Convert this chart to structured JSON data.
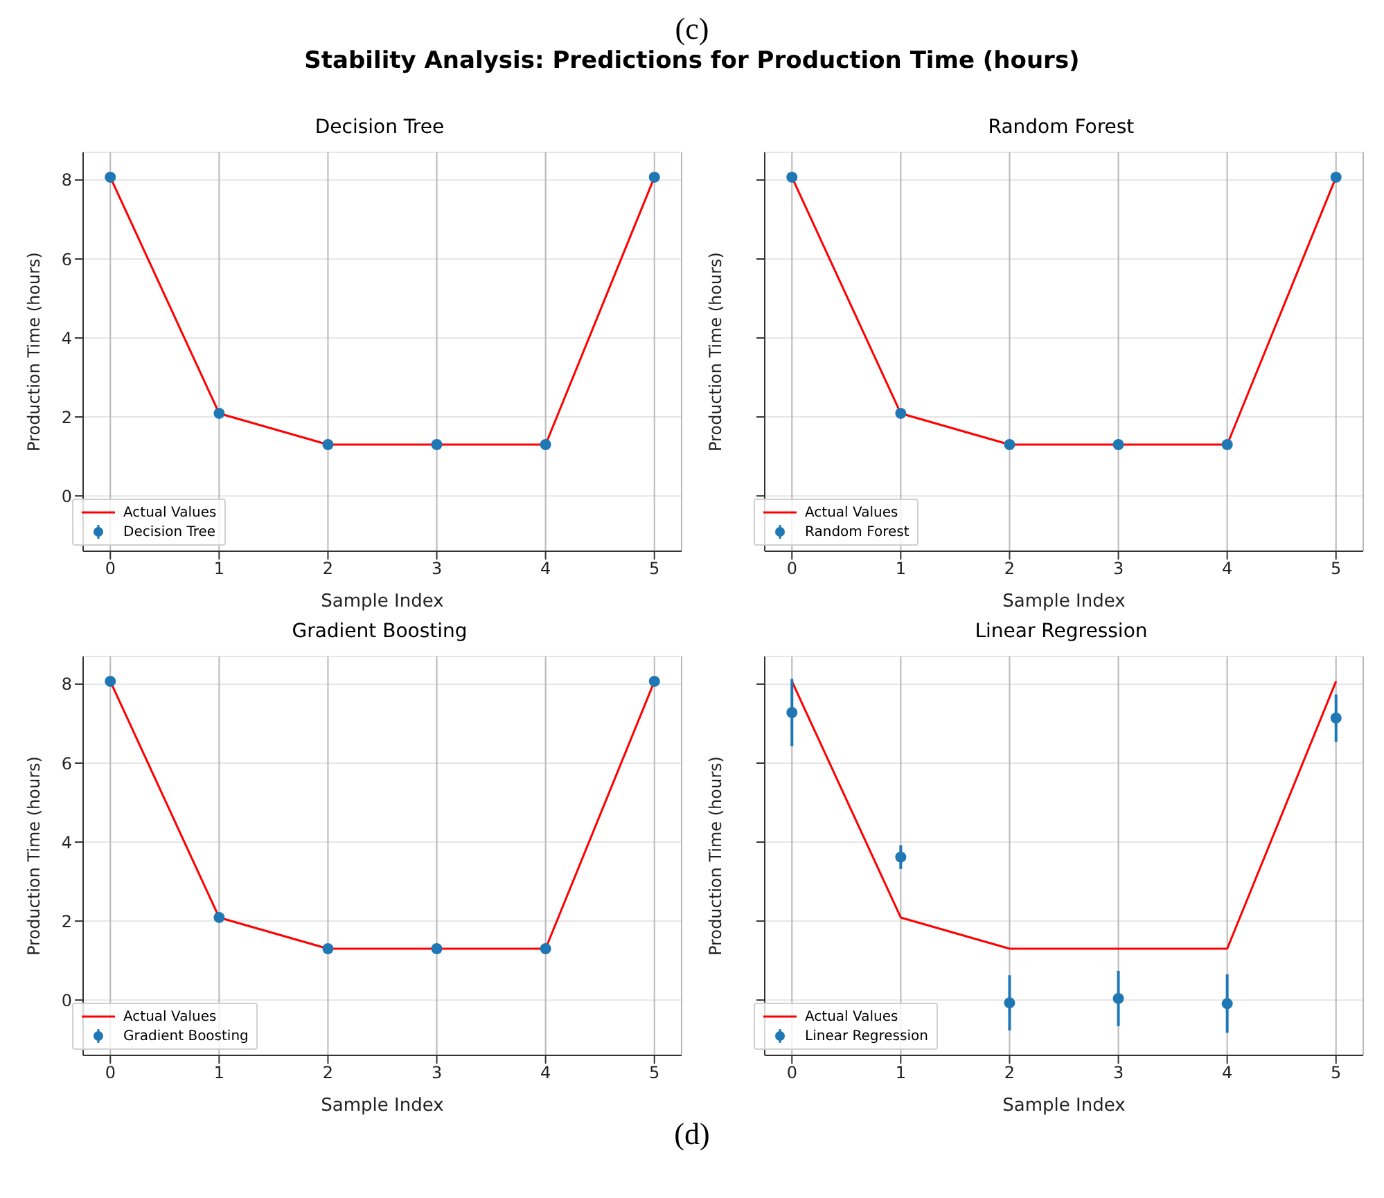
{
  "chart_data": [
    {
      "type": "line",
      "title": "Decision Tree",
      "xlabel": "Sample Index",
      "ylabel": "Production Time (hours)",
      "annotations": [
        "(c)",
        "Stability Analysis: Predictions for Production Time (hours)"
      ],
      "x": [
        0,
        1,
        2,
        3,
        4,
        5
      ],
      "xlim": [
        -0.25,
        5.25
      ],
      "xticks": [
        0,
        1,
        2,
        3,
        4,
        5
      ],
      "ylim": [
        -1.4,
        8.7
      ],
      "yticks": [
        0,
        2,
        4,
        6,
        8
      ],
      "grid": true,
      "legend": "bottom left",
      "series": [
        {
          "name": "Actual Values",
          "type": "line",
          "color": "#ff0000",
          "values": [
            8.07,
            2.09,
            1.3,
            1.3,
            1.3,
            8.07
          ]
        },
        {
          "name": "Decision Tree",
          "type": "scatter",
          "marker": "circle",
          "color": "#1f77b4",
          "values": [
            8.07,
            2.09,
            1.3,
            1.3,
            1.3,
            8.07
          ]
        }
      ]
    },
    {
      "type": "line",
      "title": "Random Forest",
      "xlabel": "Sample Index",
      "ylabel": "Production Time (hours)",
      "x": [
        0,
        1,
        2,
        3,
        4,
        5
      ],
      "xlim": [
        -0.25,
        5.25
      ],
      "xticks": [
        0,
        1,
        2,
        3,
        4,
        5
      ],
      "ylim": [
        -1.4,
        8.7
      ],
      "yticks": [
        0,
        2,
        4,
        6,
        8
      ],
      "tick_labels": "x",
      "grid": true,
      "legend": "bottom left",
      "series": [
        {
          "name": "Actual Values",
          "type": "line",
          "color": "#ff0000",
          "values": [
            8.07,
            2.09,
            1.3,
            1.3,
            1.3,
            8.07
          ]
        },
        {
          "name": "Random Forest",
          "type": "scatter",
          "marker": "circle",
          "color": "#1f77b4",
          "values": [
            8.07,
            2.09,
            1.3,
            1.3,
            1.3,
            8.07
          ]
        }
      ]
    },
    {
      "type": "line",
      "title": "Gradient Boosting",
      "xlabel": "Sample Index",
      "ylabel": "Production Time (hours)",
      "x": [
        0,
        1,
        2,
        3,
        4,
        5
      ],
      "xlim": [
        -0.25,
        5.25
      ],
      "xticks": [
        0,
        1,
        2,
        3,
        4,
        5
      ],
      "ylim": [
        -1.4,
        8.7
      ],
      "yticks": [
        0,
        2,
        4,
        6,
        8
      ],
      "grid": true,
      "legend": "bottom left",
      "series": [
        {
          "name": "Actual Values",
          "type": "line",
          "color": "#ff0000",
          "values": [
            8.07,
            2.09,
            1.3,
            1.3,
            1.3,
            8.07
          ]
        },
        {
          "name": "Gradient Boosting",
          "type": "scatter",
          "marker": "circle",
          "color": "#1f77b4",
          "values": [
            8.07,
            2.09,
            1.3,
            1.3,
            1.3,
            8.07
          ]
        }
      ]
    },
    {
      "type": "line",
      "title": "Linear Regression",
      "xlabel": "Sample Index",
      "ylabel": "Production Time (hours)",
      "annotations": [
        "(d)"
      ],
      "x": [
        0,
        1,
        2,
        3,
        4,
        5
      ],
      "xlim": [
        -0.25,
        5.25
      ],
      "xticks": [
        0,
        1,
        2,
        3,
        4,
        5
      ],
      "ylim": [
        -1.4,
        8.7
      ],
      "yticks": [
        0,
        2,
        4,
        6,
        8
      ],
      "tick_labels": "x",
      "grid": true,
      "legend": "bottom left",
      "series": [
        {
          "name": "Actual Values",
          "type": "line",
          "color": "#ff0000",
          "values": [
            8.07,
            2.09,
            1.3,
            1.3,
            1.3,
            8.07
          ]
        },
        {
          "name": "Linear Regression",
          "type": "scatter",
          "marker": "circle",
          "color": "#1f77b4",
          "values": [
            7.28,
            3.62,
            -0.07,
            0.04,
            -0.09,
            7.14
          ],
          "errors": [
            0.85,
            0.3,
            0.7,
            0.7,
            0.74,
            0.6
          ]
        }
      ]
    }
  ]
}
